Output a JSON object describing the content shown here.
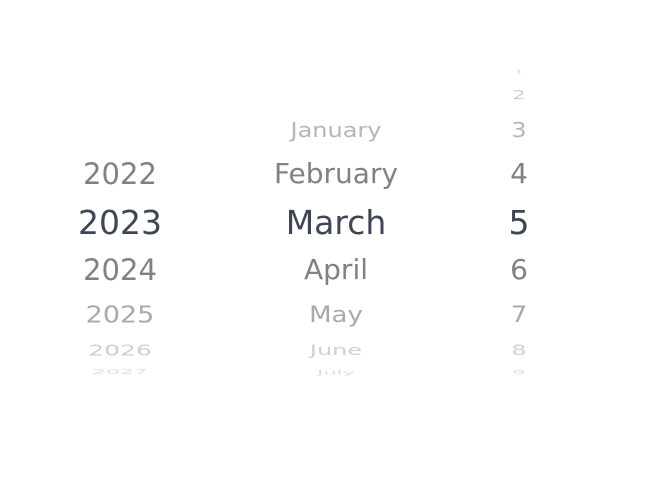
{
  "picker": {
    "columns": [
      {
        "name": "year",
        "selected": "2023",
        "items": [
          "2022",
          "2023",
          "2024",
          "2025",
          "2026",
          "2027"
        ]
      },
      {
        "name": "month",
        "selected": "March",
        "items": [
          "January",
          "February",
          "March",
          "April",
          "May",
          "June",
          "July"
        ]
      },
      {
        "name": "day",
        "selected": "5",
        "items": [
          "1",
          "2",
          "3",
          "4",
          "5",
          "6",
          "7",
          "8",
          "9"
        ]
      }
    ]
  },
  "colors": {
    "selected": "#3d4654",
    "near": "#7b7b7b",
    "far": "#c4c4c4"
  }
}
